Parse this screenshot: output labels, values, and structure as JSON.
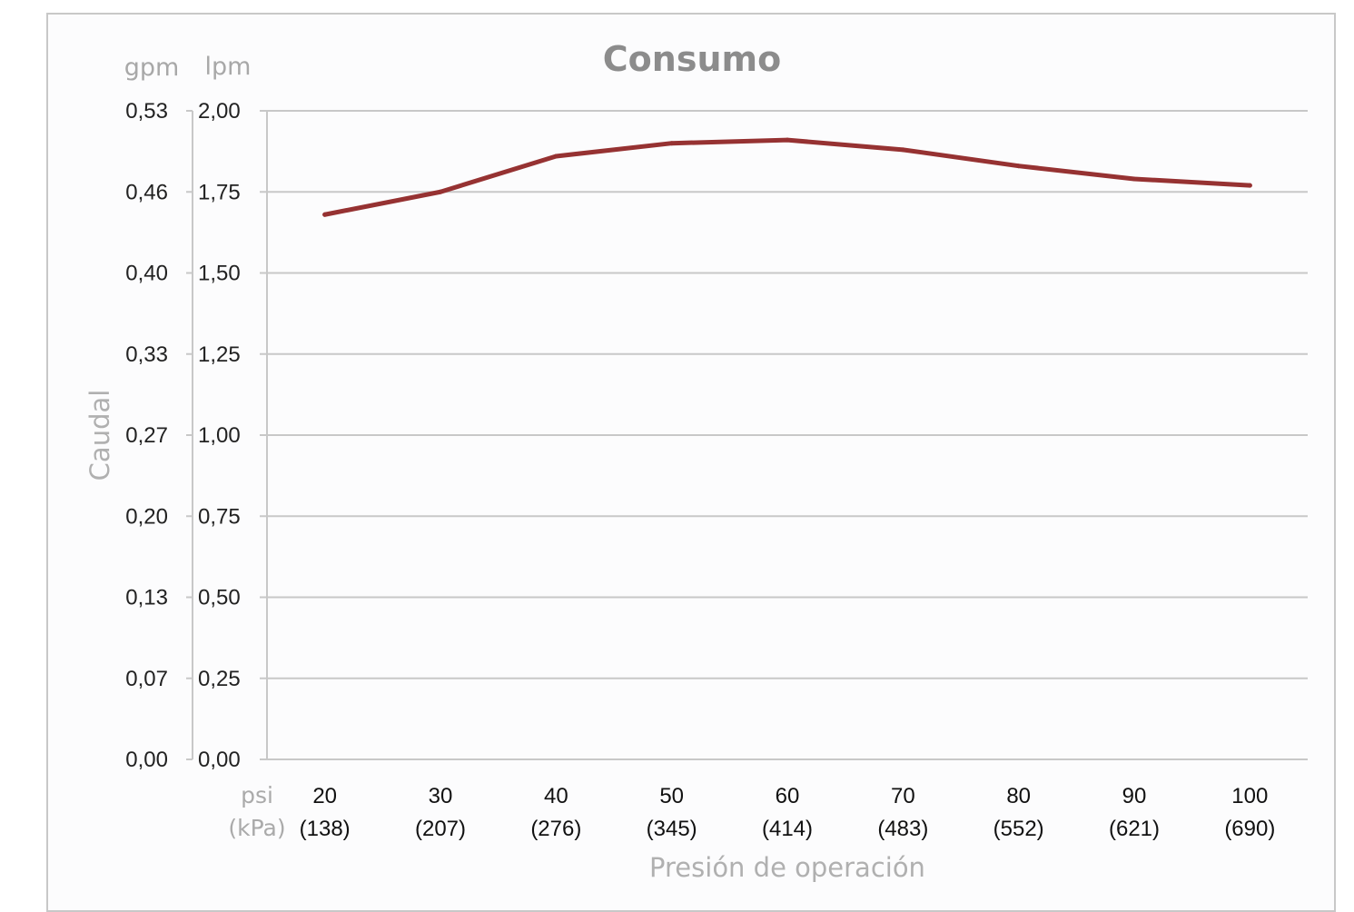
{
  "chart_data": {
    "type": "line",
    "title": "Consumo",
    "xlabel": "Presión de operación",
    "ylabel": "Caudal",
    "x_unit_primary": "psi",
    "x_unit_secondary": "(kPa)",
    "y_unit_left": "gpm",
    "y_unit_right": "lpm",
    "categories_psi": [
      "20",
      "30",
      "40",
      "50",
      "60",
      "70",
      "80",
      "90",
      "100"
    ],
    "categories_kpa": [
      "(138)",
      "(207)",
      "(276)",
      "(345)",
      "(414)",
      "(483)",
      "(552)",
      "(621)",
      "(690)"
    ],
    "ylim": [
      0,
      2
    ],
    "yticks_lpm": [
      "0,00",
      "0,25",
      "0,50",
      "0,75",
      "1,00",
      "1,25",
      "1,50",
      "1,75",
      "2,00"
    ],
    "yticks_gpm": [
      "0,00",
      "0,07",
      "0,13",
      "0,20",
      "0,27",
      "0,33",
      "0,40",
      "0,46",
      "0,53"
    ],
    "series": [
      {
        "values": [
          1.68,
          1.75,
          1.86,
          1.9,
          1.91,
          1.88,
          1.83,
          1.79,
          1.77
        ]
      }
    ],
    "grid": true,
    "legend": "none",
    "colors": {
      "line": "#963232",
      "grid": "#c8c8c8"
    }
  }
}
